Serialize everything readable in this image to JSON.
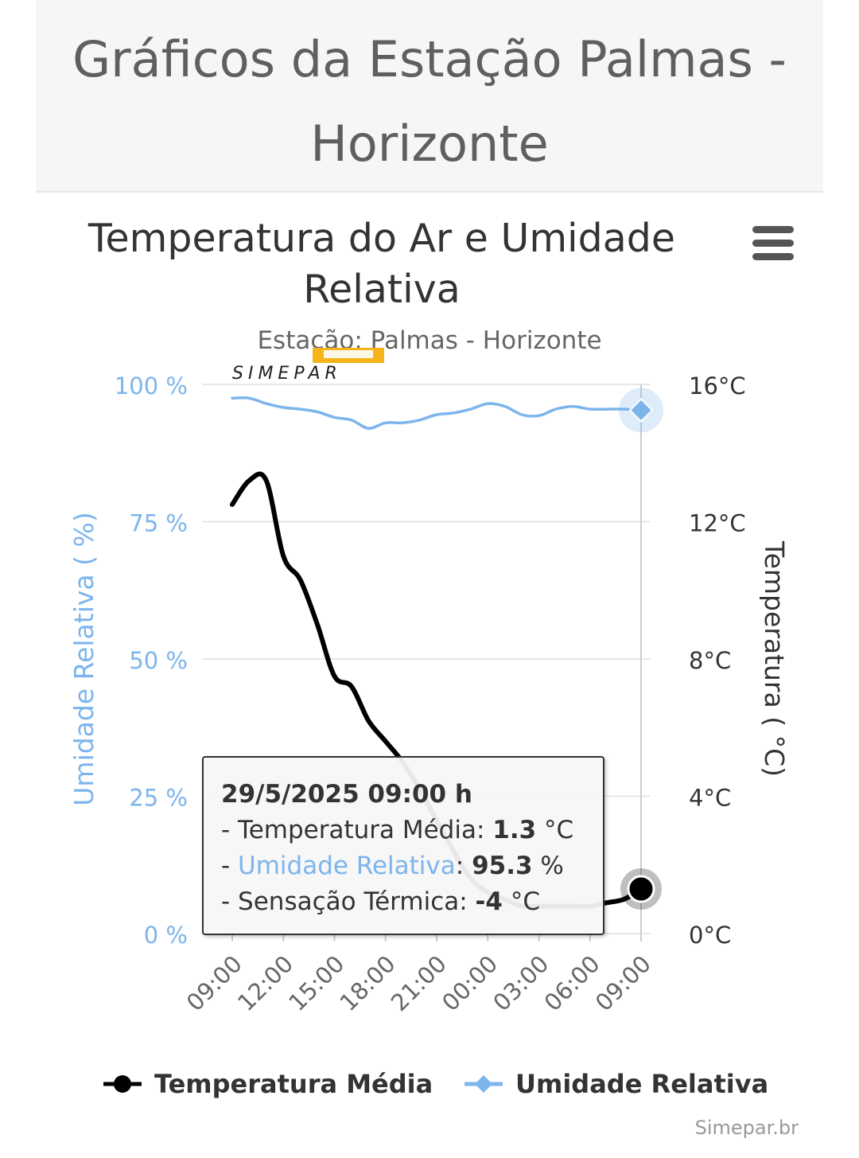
{
  "page": {
    "title_line1": "Gráficos da Estação Palmas -",
    "title_line2": "Horizonte"
  },
  "chart": {
    "title_line1": "Temperatura do Ar e Umidade",
    "title_line2": "Relativa",
    "subtitle": "Estação: Palmas - Horizonte",
    "watermark": "SIMEPAR",
    "menu_icon": "hamburger-menu-icon",
    "credits": "Simepar.br"
  },
  "legend": {
    "temperature": "Temperatura Média",
    "humidity": "Umidade Relativa"
  },
  "tooltip": {
    "date": "29/5/2025 09:00 h",
    "temp_prefix": "- Temperatura Média: ",
    "temp_value": "1.3",
    "temp_unit": " °C",
    "hum_prefix": "- ",
    "hum_label": "Umidade Relativa",
    "hum_sep": ": ",
    "hum_value": "95.3",
    "hum_unit": " %",
    "feel_prefix": "- Sensação Térmica: ",
    "feel_value": "-4",
    "feel_unit": " °C"
  },
  "colors": {
    "temperature": "#000000",
    "humidity": "#7cb5ec",
    "humidity_axis": "#7cb5ec",
    "grid": "#e6e6e6"
  },
  "chart_data": {
    "type": "line",
    "title": "Temperatura do Ar e Umidade Relativa",
    "subtitle": "Estação: Palmas - Horizonte",
    "x_tick_labels": [
      "09:00",
      "12:00",
      "15:00",
      "18:00",
      "21:00",
      "00:00",
      "03:00",
      "06:00",
      "09:00"
    ],
    "x": [
      0,
      1,
      2,
      3,
      4,
      5,
      6,
      7,
      8,
      9,
      10,
      11,
      12,
      13,
      14,
      15,
      16,
      17,
      18,
      19,
      20,
      21,
      22,
      23,
      24
    ],
    "y_axis_left": {
      "label": "Umidade Relativa ( %)",
      "min": 0,
      "max": 100,
      "ticks": [
        "0 %",
        "25 %",
        "50 %",
        "75 %",
        "100 %"
      ],
      "tick_values": [
        0,
        25,
        50,
        75,
        100
      ]
    },
    "y_axis_right": {
      "label": "Temperatura ( °C)",
      "min": 0,
      "max": 16,
      "ticks": [
        "0°C",
        "4°C",
        "8°C",
        "12°C",
        "16°C"
      ],
      "tick_values": [
        0,
        4,
        8,
        12,
        16
      ]
    },
    "grid": true,
    "legend_position": "bottom",
    "series": [
      {
        "name": "Temperatura Média",
        "axis": "right",
        "marker": "circle",
        "values": [
          12.5,
          13.2,
          13.2,
          11.0,
          10.3,
          9.0,
          7.5,
          7.2,
          6.2,
          5.6,
          5.0,
          4.2,
          3.3,
          2.4,
          1.6,
          1.2,
          1.0,
          0.8,
          0.8,
          0.8,
          0.8,
          0.8,
          0.9,
          1.0,
          1.3
        ]
      },
      {
        "name": "Umidade Relativa",
        "axis": "left",
        "marker": "diamond",
        "values": [
          97.5,
          97.5,
          96.5,
          95.8,
          95.5,
          95.0,
          94.0,
          93.5,
          92.0,
          93.0,
          93.0,
          93.5,
          94.5,
          94.8,
          95.5,
          96.5,
          96.0,
          94.5,
          94.3,
          95.5,
          96.0,
          95.5,
          95.5,
          95.5,
          95.3
        ]
      }
    ],
    "highlighted_point": {
      "x_label": "09:00",
      "temperature": 1.3,
      "humidity": 95.3,
      "feels_like": -4
    }
  }
}
